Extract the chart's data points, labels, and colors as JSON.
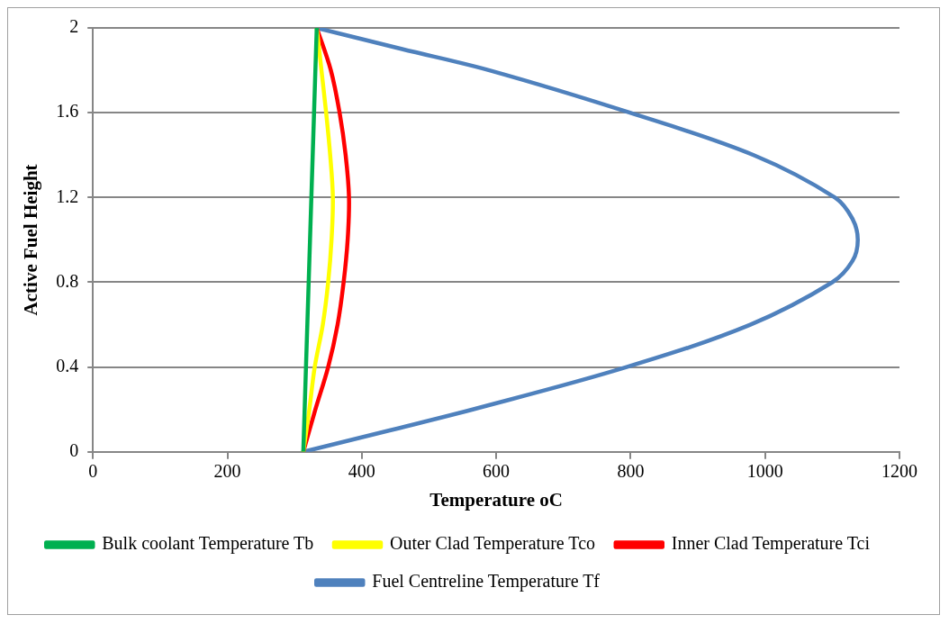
{
  "chart_data": {
    "type": "line",
    "xlabel": "Temperature oC",
    "ylabel": "Active Fuel Height",
    "xlim": [
      0,
      1200
    ],
    "xticks": [
      0,
      200,
      400,
      600,
      800,
      1000,
      1200
    ],
    "ylim": [
      0,
      2
    ],
    "yticks": [
      0,
      0.4,
      0.8,
      1.2,
      1.6,
      2
    ],
    "grid": "y",
    "legend": "bottom",
    "marker": "none",
    "line_style": "solid",
    "series": [
      {
        "name": "Bulk coolant Temperature Tb",
        "color": "#00b050",
        "x": [
          313,
          318,
          323,
          328,
          333
        ],
        "values": [
          0,
          0.5,
          1,
          1.5,
          2
        ]
      },
      {
        "name": "Outer Clad Temperature Tco",
        "color": "#ffff00",
        "x": [
          313,
          322,
          330,
          342,
          350,
          355,
          357,
          353,
          347,
          340,
          333
        ],
        "values": [
          0,
          0.2,
          0.4,
          0.6,
          0.8,
          1,
          1.2,
          1.4,
          1.6,
          1.8,
          2
        ]
      },
      {
        "name": "Inner Clad Temperature Tci",
        "color": "#ff0000",
        "x": [
          313,
          331,
          350,
          364,
          373,
          379,
          381,
          376,
          367,
          354,
          333
        ],
        "values": [
          0,
          0.2,
          0.4,
          0.6,
          0.8,
          1,
          1.2,
          1.4,
          1.6,
          1.8,
          2
        ]
      },
      {
        "name": "Fuel Centreline Temperature Tf",
        "color": "#4f81bd",
        "x": [
          313,
          440,
          565,
          794,
          978,
          1100,
          1130,
          1138,
          1130,
          1104,
          983,
          799,
          590,
          460,
          333
        ],
        "values": [
          0,
          0.1,
          0.2,
          0.4,
          0.6,
          0.8,
          0.9,
          1,
          1.1,
          1.2,
          1.4,
          1.6,
          1.8,
          1.9,
          2
        ]
      }
    ]
  }
}
